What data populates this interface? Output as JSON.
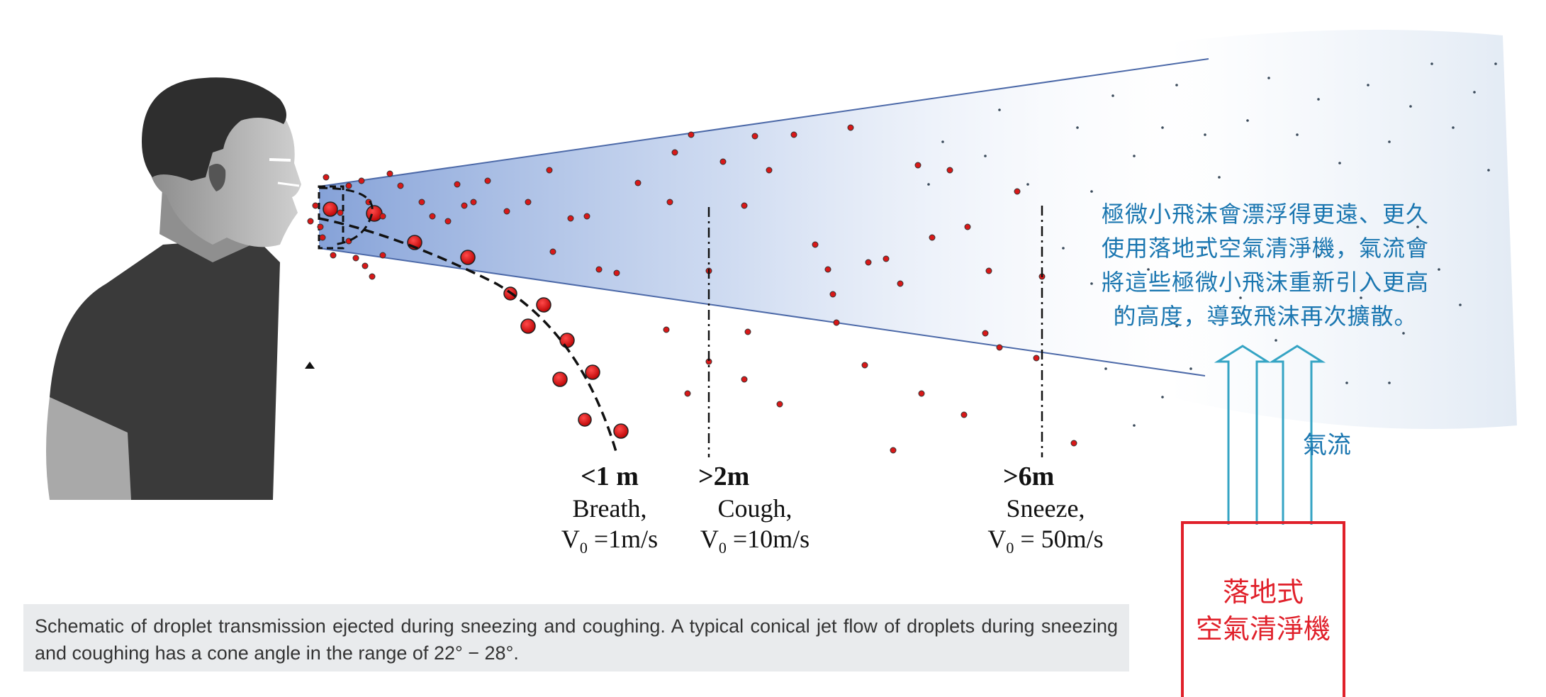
{
  "labels": [
    {
      "distance": "<1 m",
      "kind": "Breath,",
      "v_sub": "0",
      "v_value": " =1m/s"
    },
    {
      "distance": ">2m",
      "kind": "Cough,",
      "v_sub": "0",
      "v_value": " =10m/s"
    },
    {
      "distance": ">6m",
      "kind": "Sneeze,",
      "v_sub": "0",
      "v_value": " = 50m/s"
    }
  ],
  "velocity_symbol": "V",
  "note_lines": [
    "極微小飛沫會漂浮得更遠、更久",
    "使用落地式空氣清淨機，氣流會",
    "將這些極微小飛沫重新引入更高",
    "的高度，導致飛沫再次擴散。"
  ],
  "airflow_label": "氣流",
  "purifier_lines": [
    "落地式",
    "空氣清淨機"
  ],
  "caption": "Schematic of droplet transmission ejected during sneezing and coughing. A typical conical jet flow of droplets during sneezing and coughing has a cone angle in the range of 22° − 28°.",
  "colors": {
    "droplet": "#e01b1b",
    "cone": "#7f9dd6",
    "note_text": "#1a76b0",
    "airflow_arrow": "#35a4c4",
    "purifier": "#e0202a",
    "caption_bg": "#e9ebed"
  },
  "icons": [
    "person-silhouette",
    "airflow-arrow-icon"
  ]
}
